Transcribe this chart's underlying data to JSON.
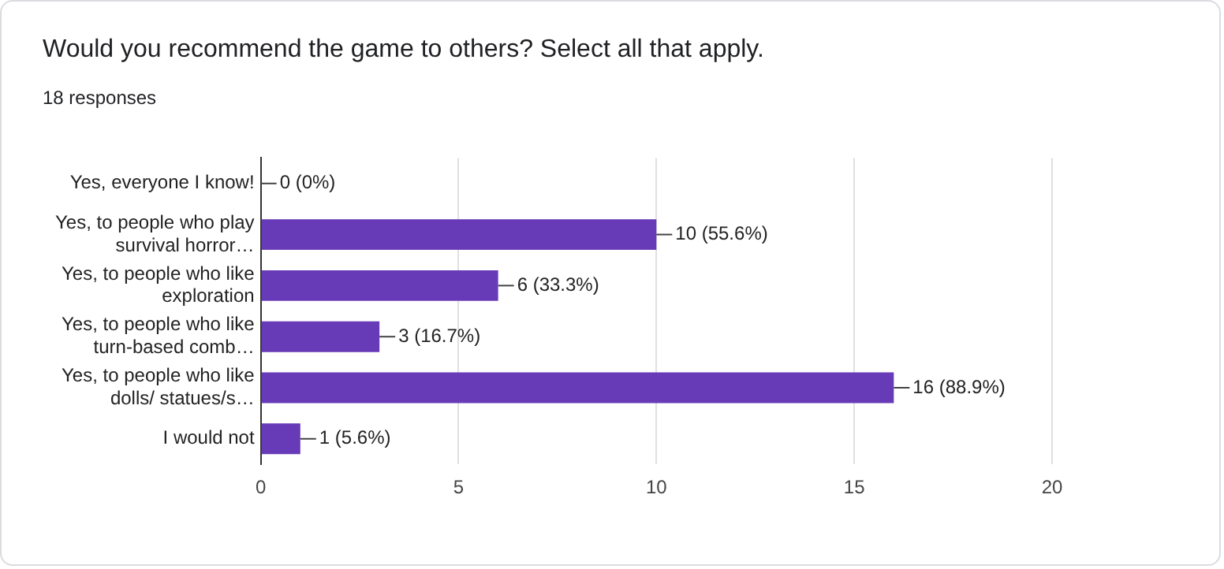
{
  "chart_data": {
    "type": "bar",
    "orientation": "horizontal",
    "title": "Would you recommend the game to others? Select all that apply.",
    "subtitle": "18 responses",
    "categories": [
      "Yes, everyone I know!",
      "Yes, to people who play survival horror…",
      "Yes, to people who like exploration",
      "Yes, to people who like turn-based comb…",
      "Yes, to people who like dolls/ statues/s…",
      "I would not"
    ],
    "values": [
      0,
      10,
      6,
      3,
      16,
      1
    ],
    "value_labels": [
      "0 (0%)",
      "10 (55.6%)",
      "6 (33.3%)",
      "3 (16.7%)",
      "16 (88.9%)",
      "1 (5.6%)"
    ],
    "color": "#673ab7",
    "xlim": [
      0,
      20
    ],
    "xticks": [
      0,
      5,
      10,
      15,
      20
    ],
    "grid": "x",
    "legend": false
  }
}
